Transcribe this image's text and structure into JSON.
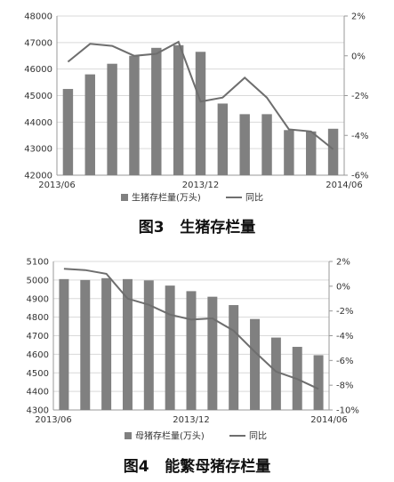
{
  "figures": [
    {
      "caption": "图3   生猪存栏量"
    },
    {
      "caption": "图4   能繁母猪存栏量"
    }
  ],
  "chart_data": [
    {
      "type": "bar",
      "x": [
        "2013/06",
        "2013/07",
        "2013/08",
        "2013/09",
        "2013/10",
        "2013/11",
        "2013/12",
        "2014/01",
        "2014/02",
        "2014/03",
        "2014/04",
        "2014/05",
        "2014/06"
      ],
      "xtick_labels": [
        "2013/06",
        "2013/12",
        "2014/06"
      ],
      "xtick_index": [
        0,
        6,
        12
      ],
      "series": [
        {
          "name": "生猪存栏量(万头)",
          "kind": "bar",
          "axis": "left",
          "color": "#808080",
          "values": [
            45250,
            45800,
            46200,
            46500,
            46800,
            46900,
            46650,
            44700,
            44300,
            44300,
            43700,
            43650,
            43750
          ]
        },
        {
          "name": "同比",
          "kind": "line",
          "axis": "right",
          "color": "#6e6e6e",
          "values": [
            -0.3,
            0.6,
            0.5,
            0.0,
            0.1,
            0.7,
            -2.3,
            -2.1,
            -1.1,
            -2.1,
            -3.7,
            -3.8,
            -4.7
          ]
        }
      ],
      "ylim": [
        42000,
        48000
      ],
      "yticks": [
        "42000",
        "43000",
        "44000",
        "45000",
        "46000",
        "47000",
        "48000"
      ],
      "ylim_right": [
        -6,
        2
      ],
      "yticks_right": [
        "-6%",
        "-4%",
        "-2%",
        "0%",
        "2%"
      ],
      "grid": true,
      "legend_position": "bottom"
    },
    {
      "type": "bar",
      "x": [
        "2013/06",
        "2013/07",
        "2013/08",
        "2013/09",
        "2013/10",
        "2013/11",
        "2013/12",
        "2014/01",
        "2014/02",
        "2014/03",
        "2014/04",
        "2014/05",
        "2014/06"
      ],
      "xtick_labels": [
        "2013/06",
        "2013/12",
        "2014/06"
      ],
      "xtick_index": [
        0,
        6,
        12
      ],
      "series": [
        {
          "name": "母猪存栏量(万头)",
          "kind": "bar",
          "axis": "left",
          "color": "#808080",
          "values": [
            5005,
            5000,
            5010,
            5005,
            4998,
            4970,
            4940,
            4910,
            4865,
            4790,
            4690,
            4640,
            4595
          ]
        },
        {
          "name": "同比",
          "kind": "line",
          "axis": "right",
          "color": "#6e6e6e",
          "values": [
            1.4,
            1.3,
            1.0,
            -1.0,
            -1.5,
            -2.3,
            -2.7,
            -2.6,
            -3.6,
            -5.3,
            -6.9,
            -7.5,
            -8.3
          ]
        }
      ],
      "ylim": [
        4300,
        5100
      ],
      "yticks": [
        "4300",
        "4400",
        "4500",
        "4600",
        "4700",
        "4800",
        "4900",
        "5000",
        "5100"
      ],
      "ylim_right": [
        -10,
        2
      ],
      "yticks_right": [
        "-10%",
        "-8%",
        "-6%",
        "-4%",
        "-2%",
        "0%",
        "2%"
      ],
      "grid": true,
      "legend_position": "bottom"
    }
  ]
}
